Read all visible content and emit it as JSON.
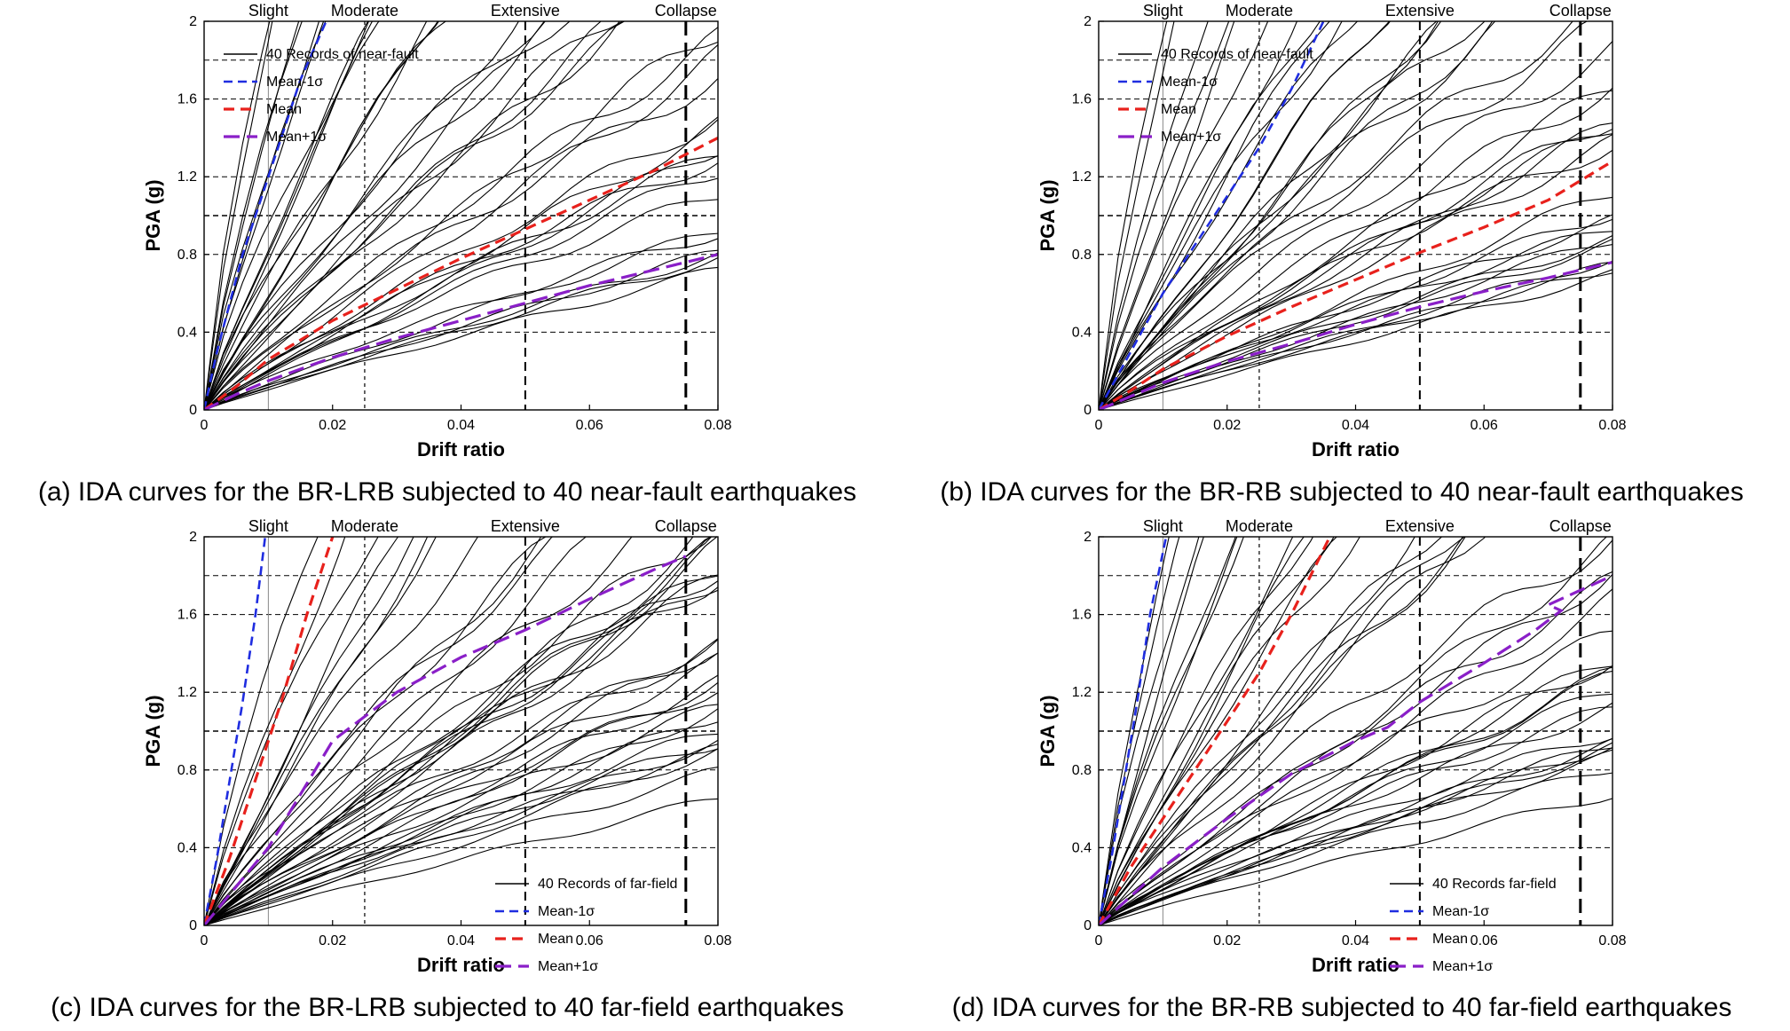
{
  "panels": [
    {
      "caption": "(a) IDA curves for the BR-LRB subjected to 40 near-fault earthquakes",
      "legend": [
        "40 Records of near-fault",
        "Mean-1σ",
        "Mean",
        "Mean+1σ"
      ],
      "legend_position": "top-left",
      "record_seed": 11,
      "chart_data": {
        "type": "line",
        "xlabel": "Drift ratio",
        "ylabel": "PGA (g)",
        "xlim": [
          0,
          0.08
        ],
        "ylim": [
          0,
          2
        ],
        "xticks": [
          0,
          0.02,
          0.04,
          0.06,
          0.08
        ],
        "xtick_labels": [
          "0",
          "0.02",
          "0.04",
          "0.06",
          "0.08"
        ],
        "yticks": [
          0,
          0.4,
          0.8,
          1.2,
          1.6,
          2
        ],
        "ytick_labels": [
          "0",
          "0.4",
          "0.8",
          "1.2",
          "1.6",
          "2"
        ],
        "damage_states": [
          {
            "label": "Slight",
            "x": 0.01
          },
          {
            "label": "Moderate",
            "x": 0.025
          },
          {
            "label": "Extensive",
            "x": 0.05
          },
          {
            "label": "Collapse",
            "x": 0.075
          }
        ],
        "hlines": [
          0.4,
          0.8,
          1.0,
          1.2,
          1.6,
          1.8
        ],
        "series": [
          {
            "name": "Mean-1σ",
            "color": "#1f2de0",
            "x": [
              0,
              0.002,
              0.004,
              0.006,
              0.008,
              0.01,
              0.012,
              0.015,
              0.019
            ],
            "y": [
              0,
              0.3,
              0.55,
              0.8,
              1.0,
              1.2,
              1.4,
              1.7,
              2.0
            ]
          },
          {
            "name": "Mean",
            "color": "#e8211c",
            "x": [
              0,
              0.005,
              0.01,
              0.02,
              0.03,
              0.04,
              0.05,
              0.06,
              0.07,
              0.08
            ],
            "y": [
              0,
              0.12,
              0.26,
              0.46,
              0.62,
              0.78,
              0.93,
              1.08,
              1.23,
              1.4
            ]
          },
          {
            "name": "Mean+1σ",
            "color": "#8a1fc8",
            "x": [
              0,
              0.005,
              0.01,
              0.02,
              0.03,
              0.04,
              0.05,
              0.06,
              0.07,
              0.08
            ],
            "y": [
              0,
              0.08,
              0.15,
              0.27,
              0.37,
              0.46,
              0.55,
              0.64,
              0.72,
              0.8
            ]
          }
        ]
      }
    },
    {
      "caption": "(b) IDA curves for the BR-RB subjected to 40 near-fault earthquakes",
      "legend": [
        "40 Records of near-fault",
        "Mean-1σ",
        "Mean",
        "Mean+1σ"
      ],
      "legend_position": "top-left",
      "record_seed": 23,
      "chart_data": {
        "type": "line",
        "xlabel": "Drift ratio",
        "ylabel": "PGA (g)",
        "xlim": [
          0,
          0.08
        ],
        "ylim": [
          0,
          2
        ],
        "xticks": [
          0,
          0.02,
          0.04,
          0.06,
          0.08
        ],
        "xtick_labels": [
          "0",
          "0.02",
          "0.04",
          "0.06",
          "0.08"
        ],
        "yticks": [
          0,
          0.4,
          0.8,
          1.2,
          1.6,
          2
        ],
        "ytick_labels": [
          "0",
          "0.4",
          "0.8",
          "1.2",
          "1.6",
          "2"
        ],
        "damage_states": [
          {
            "label": "Slight",
            "x": 0.01
          },
          {
            "label": "Moderate",
            "x": 0.025
          },
          {
            "label": "Extensive",
            "x": 0.05
          },
          {
            "label": "Collapse",
            "x": 0.075
          }
        ],
        "hlines": [
          0.4,
          0.8,
          1.0,
          1.2,
          1.6,
          1.8
        ],
        "series": [
          {
            "name": "Mean-1σ",
            "color": "#1f2de0",
            "x": [
              0,
              0.005,
              0.01,
              0.015,
              0.02,
              0.025,
              0.03,
              0.035
            ],
            "y": [
              0,
              0.3,
              0.6,
              0.85,
              1.1,
              1.35,
              1.65,
              2.0
            ]
          },
          {
            "name": "Mean",
            "color": "#e8211c",
            "x": [
              0,
              0.005,
              0.01,
              0.02,
              0.03,
              0.04,
              0.05,
              0.06,
              0.07,
              0.08
            ],
            "y": [
              0,
              0.1,
              0.21,
              0.38,
              0.53,
              0.67,
              0.81,
              0.94,
              1.08,
              1.28
            ]
          },
          {
            "name": "Mean+1σ",
            "color": "#8a1fc8",
            "x": [
              0,
              0.005,
              0.01,
              0.02,
              0.03,
              0.04,
              0.05,
              0.06,
              0.07,
              0.08
            ],
            "y": [
              0,
              0.07,
              0.14,
              0.25,
              0.34,
              0.44,
              0.53,
              0.61,
              0.68,
              0.76
            ]
          }
        ]
      }
    },
    {
      "caption": "(c) IDA curves for the BR-LRB subjected to 40 far-field earthquakes",
      "legend": [
        "40 Records of far-field",
        "Mean-1σ",
        "Mean",
        "Mean+1σ"
      ],
      "legend_position": "bottom-right",
      "record_seed": 37,
      "chart_data": {
        "type": "line",
        "xlabel": "Drift ratio",
        "ylabel": "PGA (g)",
        "xlim": [
          0,
          0.08
        ],
        "ylim": [
          0,
          2
        ],
        "xticks": [
          0,
          0.02,
          0.04,
          0.06,
          0.08
        ],
        "xtick_labels": [
          "0",
          "0.02",
          "0.04",
          "0.06",
          "0.08"
        ],
        "yticks": [
          0,
          0.4,
          0.8,
          1.2,
          1.6,
          2
        ],
        "ytick_labels": [
          "0",
          "0.4",
          "0.8",
          "1.2",
          "1.6",
          "2"
        ],
        "damage_states": [
          {
            "label": "Slight",
            "x": 0.01
          },
          {
            "label": "Moderate",
            "x": 0.025
          },
          {
            "label": "Extensive",
            "x": 0.05
          },
          {
            "label": "Collapse",
            "x": 0.075
          }
        ],
        "hlines": [
          0.4,
          0.8,
          1.0,
          1.2,
          1.6,
          1.8
        ],
        "series": [
          {
            "name": "Mean-1σ",
            "color": "#1f2de0",
            "x": [
              0,
              0.002,
              0.004,
              0.006,
              0.008,
              0.0095
            ],
            "y": [
              0,
              0.35,
              0.75,
              1.15,
              1.6,
              2.0
            ]
          },
          {
            "name": "Mean",
            "color": "#e8211c",
            "x": [
              0,
              0.004,
              0.008,
              0.012,
              0.016,
              0.02
            ],
            "y": [
              0,
              0.35,
              0.75,
              1.15,
              1.6,
              2.0
            ]
          },
          {
            "name": "Mean+1σ",
            "color": "#8a1fc8",
            "x": [
              0,
              0.005,
              0.01,
              0.02,
              0.03,
              0.04,
              0.05,
              0.06,
              0.07,
              0.075
            ],
            "y": [
              0,
              0.2,
              0.4,
              0.95,
              1.2,
              1.38,
              1.52,
              1.68,
              1.83,
              1.9
            ]
          }
        ]
      }
    },
    {
      "caption": "(d) IDA curves for the BR-RB subjected to 40 far-field earthquakes",
      "legend": [
        "40 Records far-field",
        "Mean-1σ",
        "Mean",
        "Mean+1σ"
      ],
      "legend_position": "bottom-right",
      "record_seed": 53,
      "chart_data": {
        "type": "line",
        "xlabel": "Drift ratio",
        "ylabel": "PGA (g)",
        "xlim": [
          0,
          0.08
        ],
        "ylim": [
          0,
          2
        ],
        "xticks": [
          0,
          0.02,
          0.04,
          0.06,
          0.08
        ],
        "xtick_labels": [
          "0",
          "0.02",
          "0.04",
          "0.06",
          "0.08"
        ],
        "yticks": [
          0,
          0.4,
          0.8,
          1.2,
          1.6,
          2
        ],
        "ytick_labels": [
          "0",
          "0.4",
          "0.8",
          "1.2",
          "1.6",
          "2"
        ],
        "damage_states": [
          {
            "label": "Slight",
            "x": 0.01
          },
          {
            "label": "Moderate",
            "x": 0.025
          },
          {
            "label": "Extensive",
            "x": 0.05
          },
          {
            "label": "Collapse",
            "x": 0.075
          }
        ],
        "hlines": [
          0.4,
          0.8,
          1.0,
          1.2,
          1.6,
          1.8
        ],
        "series": [
          {
            "name": "Mean-1σ",
            "color": "#1f2de0",
            "x": [
              0,
              0.002,
              0.004,
              0.006,
              0.008,
              0.0105
            ],
            "y": [
              0,
              0.35,
              0.75,
              1.15,
              1.6,
              2.0
            ]
          },
          {
            "name": "Mean",
            "color": "#e8211c",
            "x": [
              0,
              0.005,
              0.01,
              0.015,
              0.02,
              0.025,
              0.03,
              0.036
            ],
            "y": [
              0,
              0.3,
              0.55,
              0.8,
              1.05,
              1.3,
              1.6,
              2.0
            ]
          },
          {
            "name": "Mean+1σ",
            "color": "#8a1fc8",
            "x": [
              0,
              0.01,
              0.02,
              0.03,
              0.04,
              0.045,
              0.05,
              0.06,
              0.068,
              0.072,
              0.07,
              0.08
            ],
            "y": [
              0,
              0.3,
              0.55,
              0.78,
              0.95,
              1.02,
              1.15,
              1.35,
              1.52,
              1.62,
              1.65,
              1.8
            ]
          }
        ]
      }
    }
  ]
}
